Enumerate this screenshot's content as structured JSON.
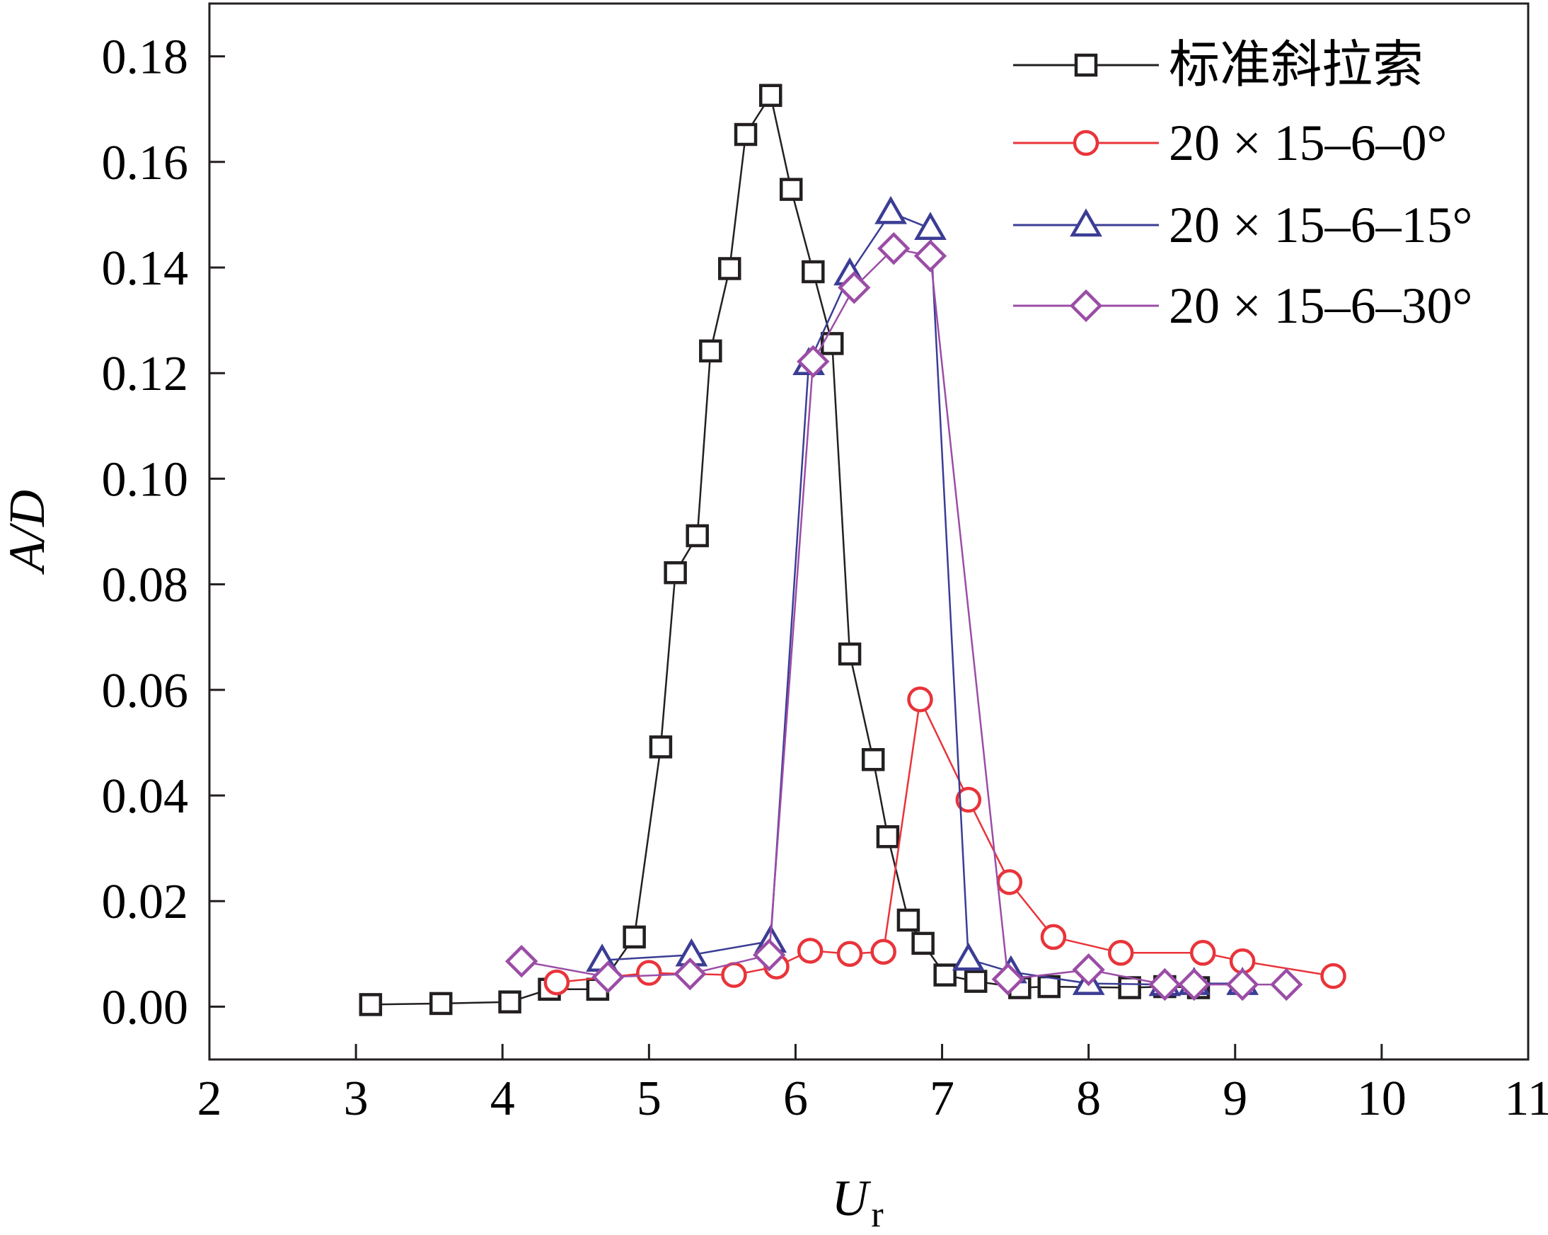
{
  "chart_data": {
    "type": "line",
    "title": "",
    "xlabel": "U",
    "xlabel_subscript": "r",
    "ylabel": "A/D",
    "xlim": [
      2,
      11
    ],
    "ylim": [
      -0.01,
      0.19
    ],
    "xticks": [
      2,
      3,
      4,
      5,
      6,
      7,
      8,
      9,
      10,
      11
    ],
    "yticks": [
      0,
      0.02,
      0.04,
      0.06,
      0.08,
      0.1,
      0.12,
      0.14,
      0.16,
      0.18
    ],
    "ytick_labels": [
      "0.00",
      "0.02",
      "0.04",
      "0.06",
      "0.08",
      "0.10",
      "0.12",
      "0.14",
      "0.16",
      "0.18"
    ],
    "grid": false,
    "legend_position": "top-right",
    "series": [
      {
        "name": "标准斜拉索",
        "color": "#231f20",
        "marker": "square",
        "points": [
          [
            3.1,
            0.0004
          ],
          [
            3.58,
            0.0006
          ],
          [
            4.05,
            0.0009
          ],
          [
            4.32,
            0.0033
          ],
          [
            4.65,
            0.0033
          ],
          [
            4.9,
            0.0132
          ],
          [
            5.08,
            0.0492
          ],
          [
            5.18,
            0.0822
          ],
          [
            5.33,
            0.0892
          ],
          [
            5.42,
            0.1242
          ],
          [
            5.55,
            0.1398
          ],
          [
            5.66,
            0.1652
          ],
          [
            5.83,
            0.1726
          ],
          [
            5.97,
            0.1548
          ],
          [
            6.12,
            0.1392
          ],
          [
            6.25,
            0.1256
          ],
          [
            6.37,
            0.0668
          ],
          [
            6.53,
            0.0468
          ],
          [
            6.63,
            0.0322
          ],
          [
            6.77,
            0.0164
          ],
          [
            6.87,
            0.012
          ],
          [
            7.02,
            0.006
          ],
          [
            7.23,
            0.0048
          ],
          [
            7.53,
            0.0036
          ],
          [
            7.73,
            0.0038
          ],
          [
            8.28,
            0.0036
          ],
          [
            8.52,
            0.0038
          ],
          [
            8.75,
            0.0036
          ]
        ]
      },
      {
        "name": "20 × 15–6–0°",
        "color": "#e8343a",
        "marker": "circle",
        "points": [
          [
            4.37,
            0.0046
          ],
          [
            5.0,
            0.0064
          ],
          [
            5.58,
            0.006
          ],
          [
            5.87,
            0.0076
          ],
          [
            6.1,
            0.0106
          ],
          [
            6.37,
            0.01
          ],
          [
            6.6,
            0.0104
          ],
          [
            6.85,
            0.0582
          ],
          [
            7.18,
            0.0392
          ],
          [
            7.46,
            0.0236
          ],
          [
            7.76,
            0.0132
          ],
          [
            8.22,
            0.0102
          ],
          [
            8.78,
            0.0102
          ],
          [
            9.05,
            0.0086
          ],
          [
            9.67,
            0.0058
          ]
        ]
      },
      {
        "name": "20 × 15–6–15°",
        "color": "#3b3d94",
        "marker": "triangle",
        "points": [
          [
            4.68,
            0.0088
          ],
          [
            5.29,
            0.0098
          ],
          [
            5.83,
            0.0124
          ],
          [
            6.09,
            0.1218
          ],
          [
            6.37,
            0.1388
          ],
          [
            6.65,
            0.1504
          ],
          [
            6.92,
            0.1474
          ],
          [
            7.18,
            0.009
          ],
          [
            7.47,
            0.0066
          ],
          [
            8.0,
            0.0044
          ],
          [
            8.52,
            0.0042
          ],
          [
            8.72,
            0.0044
          ],
          [
            9.05,
            0.0044
          ]
        ]
      },
      {
        "name": "20 × 15–6–30°",
        "color": "#9b4da6",
        "marker": "diamond",
        "points": [
          [
            4.13,
            0.0086
          ],
          [
            4.72,
            0.0056
          ],
          [
            5.28,
            0.0062
          ],
          [
            5.82,
            0.0098
          ],
          [
            6.12,
            0.1222
          ],
          [
            6.4,
            0.1362
          ],
          [
            6.67,
            0.1436
          ],
          [
            6.92,
            0.1422
          ],
          [
            7.45,
            0.0052
          ],
          [
            8.0,
            0.007
          ],
          [
            8.52,
            0.0042
          ],
          [
            8.72,
            0.0042
          ],
          [
            9.05,
            0.0042
          ],
          [
            9.35,
            0.0042
          ]
        ]
      }
    ]
  }
}
